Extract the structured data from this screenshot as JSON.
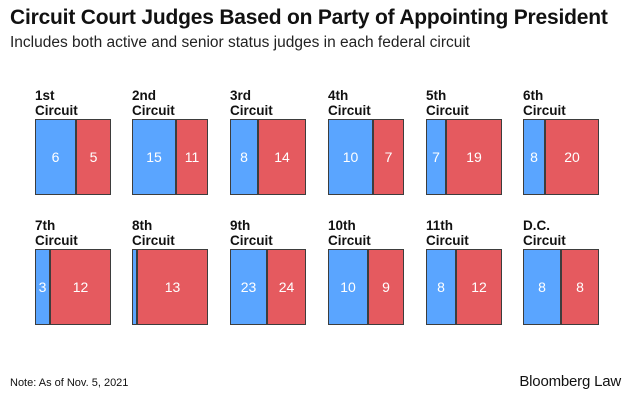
{
  "header": {
    "title": "Circuit Court Judges Based on Party of Appointing President",
    "subtitle": "Includes both active and senior status judges in each federal circuit"
  },
  "footer": {
    "note": "Note: As of Nov. 5, 2021",
    "brand": "Bloomberg Law"
  },
  "colors": {
    "democratic_appointees": "#5aa5ff",
    "republican_appointees": "#e55a5f"
  },
  "chart_data": {
    "type": "bar",
    "orientation": "horizontal-stacked-100",
    "title": "Circuit Court Judges Based on Party of Appointing President",
    "subtitle": "Includes both active and senior status judges in each federal circuit",
    "categories": [
      [
        "1st",
        "Circuit"
      ],
      [
        "2nd",
        "Circuit"
      ],
      [
        "3rd",
        "Circuit"
      ],
      [
        "4th",
        "Circuit"
      ],
      [
        "5th",
        "Circuit"
      ],
      [
        "6th",
        "Circuit"
      ],
      [
        "7th",
        "Circuit"
      ],
      [
        "8th",
        "Circuit"
      ],
      [
        "9th",
        "Circuit"
      ],
      [
        "10th",
        "Circuit"
      ],
      [
        "11th",
        "Circuit"
      ],
      [
        "D.C.",
        "Circuit"
      ]
    ],
    "series": [
      {
        "color": "#5aa5ff",
        "values": [
          6,
          15,
          8,
          10,
          7,
          8,
          3,
          1,
          23,
          10,
          8,
          8
        ]
      },
      {
        "color": "#e55a5f",
        "values": [
          5,
          11,
          14,
          7,
          19,
          20,
          12,
          13,
          24,
          9,
          12,
          8
        ]
      }
    ],
    "hidden_labels": [
      [
        7,
        0
      ]
    ],
    "grid": false,
    "legend": "none"
  }
}
